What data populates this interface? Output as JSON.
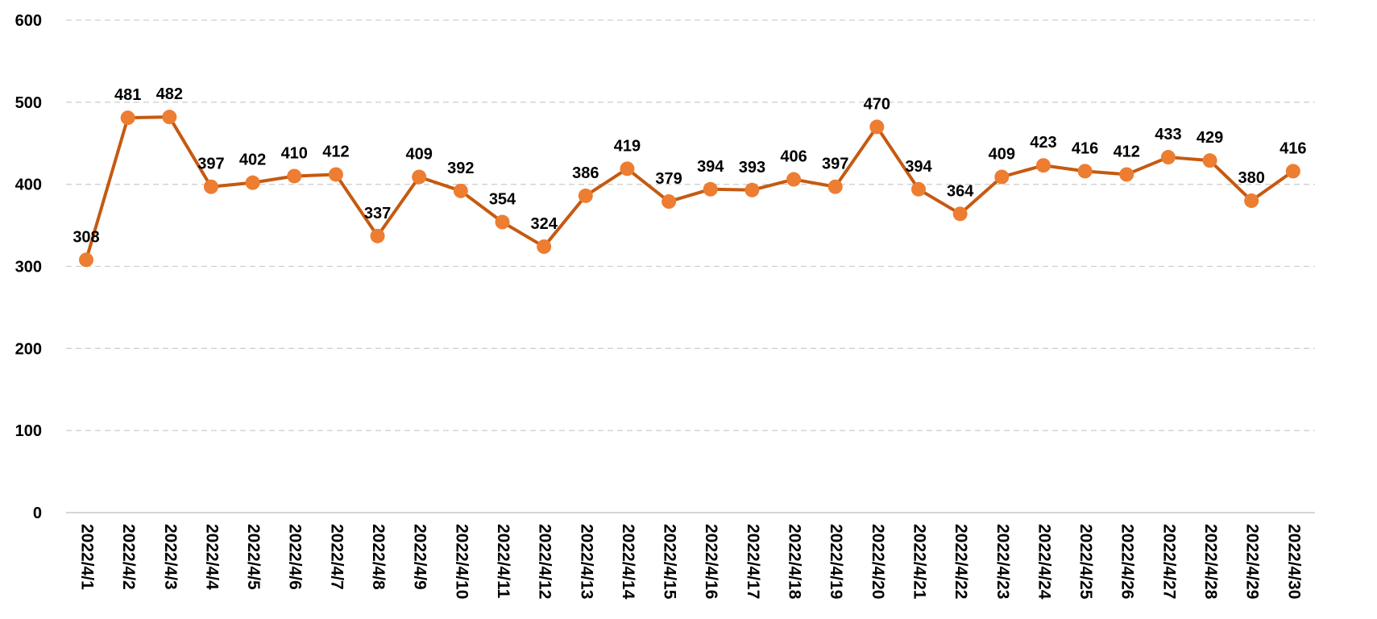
{
  "chart_data": {
    "type": "line",
    "title": "",
    "xlabel": "",
    "ylabel": "",
    "ylim": [
      0,
      600
    ],
    "yticks": [
      0,
      100,
      200,
      300,
      400,
      500,
      600
    ],
    "grid": true,
    "legend": "none",
    "categories": [
      "2022/4/1",
      "2022/4/2",
      "2022/4/3",
      "2022/4/4",
      "2022/4/5",
      "2022/4/6",
      "2022/4/7",
      "2022/4/8",
      "2022/4/9",
      "2022/4/10",
      "2022/4/11",
      "2022/4/12",
      "2022/4/13",
      "2022/4/14",
      "2022/4/15",
      "2022/4/16",
      "2022/4/17",
      "2022/4/18",
      "2022/4/19",
      "2022/4/20",
      "2022/4/21",
      "2022/4/22",
      "2022/4/23",
      "2022/4/24",
      "2022/4/25",
      "2022/4/26",
      "2022/4/27",
      "2022/4/28",
      "2022/4/29",
      "2022/4/30"
    ],
    "series": [
      {
        "values": [
          308,
          481,
          482,
          397,
          402,
          410,
          412,
          337,
          409,
          392,
          354,
          324,
          386,
          419,
          379,
          394,
          393,
          406,
          397,
          470,
          394,
          364,
          409,
          423,
          416,
          412,
          433,
          429,
          380,
          416
        ],
        "line_color": "#C55A11",
        "marker_color": "#ED7D31"
      }
    ]
  }
}
